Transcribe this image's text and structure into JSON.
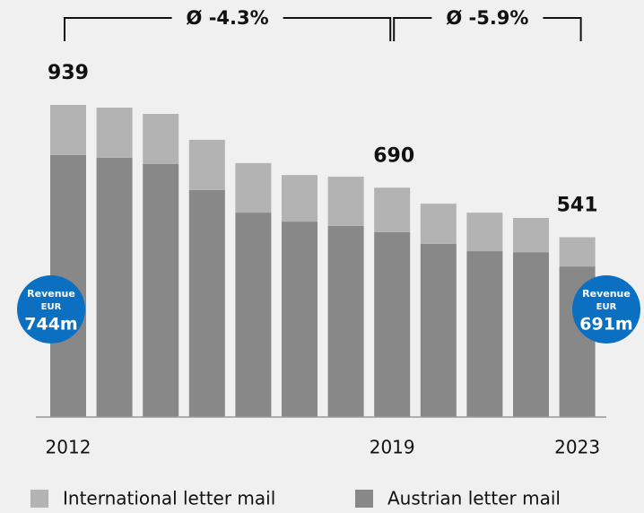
{
  "chart_data": {
    "type": "bar",
    "stacked": true,
    "categories": [
      "2012",
      null,
      null,
      null,
      null,
      null,
      null,
      "2019",
      null,
      null,
      null,
      "2023"
    ],
    "series": [
      {
        "name": "Austrian letter mail",
        "color": "#888888",
        "values": [
          788,
          780,
          761,
          683,
          615,
          588,
          575,
          556,
          521,
          499,
          496,
          453
        ]
      },
      {
        "name": "International letter mail",
        "color": "#b3b3b3",
        "values": [
          151,
          151,
          151,
          151,
          149,
          140,
          148,
          134,
          121,
          116,
          103,
          88
        ]
      }
    ],
    "total_labels": [
      {
        "category": "2012",
        "label": "939"
      },
      {
        "category": "2019",
        "label": "690"
      },
      {
        "category": "2023",
        "label": "541"
      }
    ],
    "brackets": [
      {
        "from": "2012",
        "to": "2019",
        "label": "Ø -4.3%"
      },
      {
        "from": "2019",
        "to": "2023",
        "label": "Ø -5.9%"
      }
    ],
    "badges": [
      {
        "line1": "Revenue",
        "line2": "EUR",
        "value": "744m"
      },
      {
        "line1": "Revenue",
        "line2": "EUR",
        "value": "691m"
      }
    ],
    "grid": false
  }
}
